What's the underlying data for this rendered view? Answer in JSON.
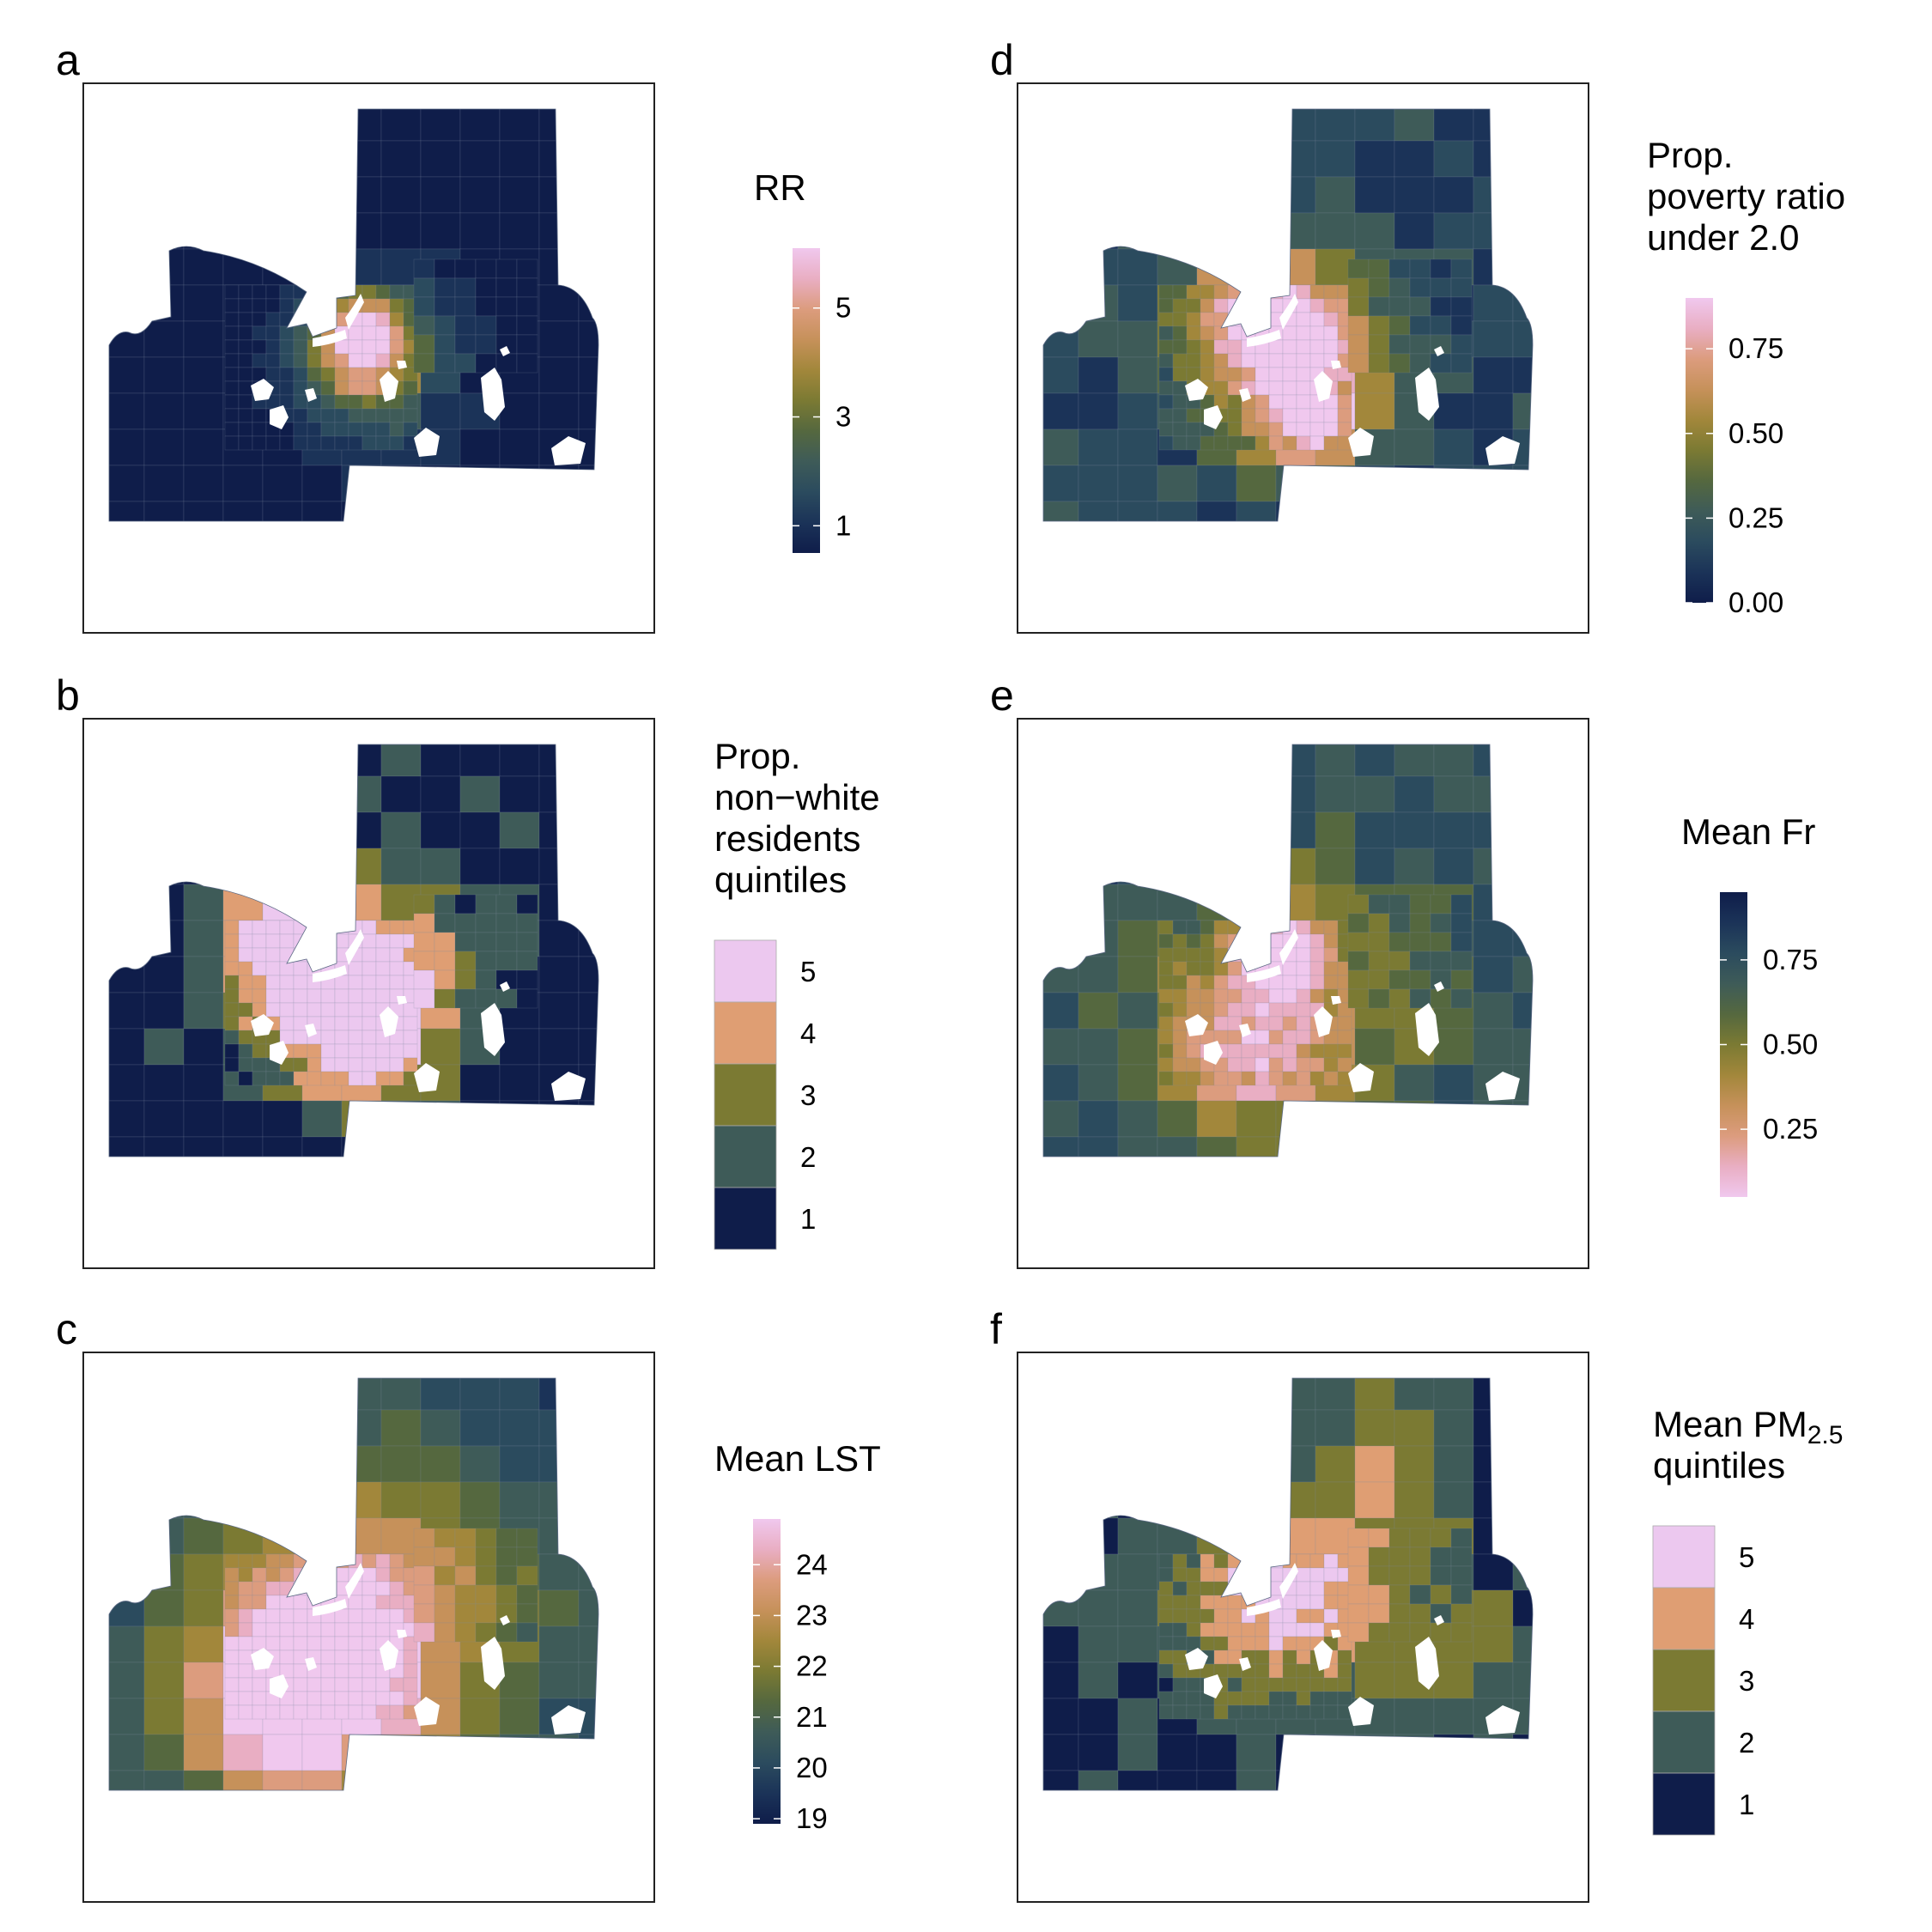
{
  "colors": {
    "scale": [
      "#0f1d4a",
      "#1b3358",
      "#2b4b5e",
      "#3e5b58",
      "#55683f",
      "#7b7a33",
      "#a2873b",
      "#c6915a",
      "#dc9c7e",
      "#e9aec3",
      "#f0c8ee"
    ],
    "quintile": [
      "#0f1d4a",
      "#3e5b58",
      "#7b7a33",
      "#df9e73",
      "#ecc8ef"
    ],
    "white": "#ffffff",
    "frame": "#222222"
  },
  "panels": [
    {
      "letter": "a",
      "legend": {
        "type": "continuous",
        "title_lines": [
          "RR"
        ],
        "ticks": [
          "5",
          "3",
          "1"
        ],
        "tick_values": [
          5,
          3,
          1
        ],
        "range": [
          0.5,
          6.1
        ],
        "reverse": false
      }
    },
    {
      "letter": "b",
      "legend": {
        "type": "discrete",
        "title_lines": [
          "Prop.",
          "non−white",
          "residents",
          "quintiles"
        ],
        "labels": [
          "5",
          "4",
          "3",
          "2",
          "1"
        ]
      }
    },
    {
      "letter": "c",
      "legend": {
        "type": "continuous",
        "title_lines": [
          "Mean LST"
        ],
        "ticks": [
          "24",
          "23",
          "22",
          "21",
          "20",
          "19"
        ],
        "tick_values": [
          24,
          23,
          22,
          21,
          20,
          19
        ],
        "range": [
          18.9,
          24.9
        ],
        "reverse": false
      }
    },
    {
      "letter": "d",
      "legend": {
        "type": "continuous",
        "title_lines": [
          "Prop.",
          "poverty ratio",
          "under 2.0"
        ],
        "ticks": [
          "0.75",
          "0.50",
          "0.25",
          "0.00"
        ],
        "tick_values": [
          0.75,
          0.5,
          0.25,
          0.0
        ],
        "range": [
          0.0,
          0.9
        ],
        "reverse": false
      }
    },
    {
      "letter": "e",
      "legend": {
        "type": "continuous",
        "title_lines": [
          "Mean Fr"
        ],
        "ticks": [
          "0.75",
          "0.50",
          "0.25"
        ],
        "tick_values": [
          0.75,
          0.5,
          0.25
        ],
        "range": [
          0.05,
          0.95
        ],
        "reverse": true
      }
    },
    {
      "letter": "f",
      "legend": {
        "type": "discrete",
        "title_lines": [
          "Mean PM",
          "quintiles"
        ],
        "title_subscript": "2.5",
        "labels": [
          "5",
          "4",
          "3",
          "2",
          "1"
        ]
      }
    }
  ]
}
